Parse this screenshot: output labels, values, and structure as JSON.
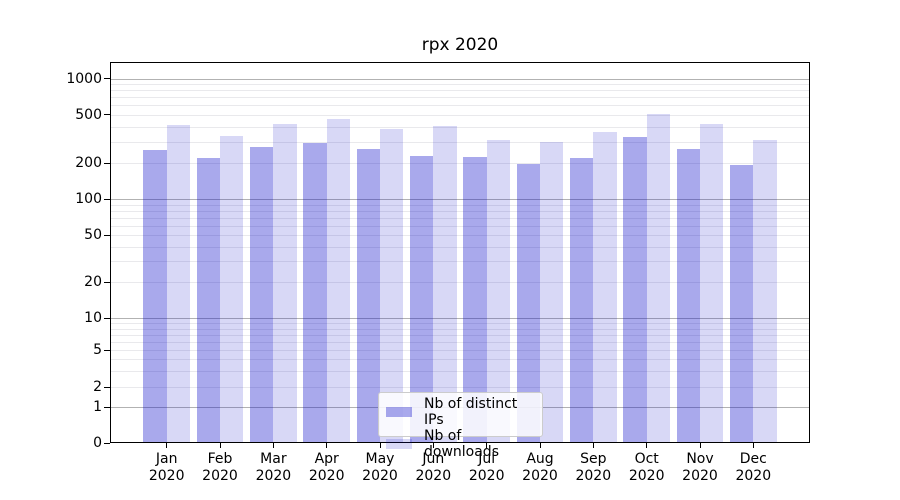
{
  "chart_data": {
    "type": "bar",
    "title": "rpx 2020",
    "categories": [
      "Jan",
      "Feb",
      "Mar",
      "Apr",
      "May",
      "Jun",
      "Jul",
      "Aug",
      "Sep",
      "Oct",
      "Nov",
      "Dec"
    ],
    "category_year_line": "2020",
    "series": [
      {
        "name": "Nb of distinct IPs",
        "color": "rgba(10,10,200,0.35)",
        "values": [
          255,
          221,
          273,
          292,
          261,
          230,
          224,
          197,
          220,
          328,
          261,
          193
        ]
      },
      {
        "name": "Nb of downloads",
        "color": "rgba(10,10,200,0.16)",
        "values": [
          411,
          336,
          422,
          462,
          381,
          402,
          313,
          299,
          363,
          507,
          420,
          312
        ]
      }
    ],
    "y_ticks": [
      0,
      1,
      2,
      5,
      10,
      20,
      50,
      100,
      200,
      500,
      1000
    ],
    "y_scale": "symlog-like",
    "ylim": [
      0,
      1400
    ],
    "xlabel": "",
    "ylabel": "",
    "grid": true,
    "legend_position": "lower center",
    "colors": {
      "major_grid": "#b2b2b2",
      "minor_grid": "#e9e9ec",
      "axis": "#000000"
    }
  }
}
